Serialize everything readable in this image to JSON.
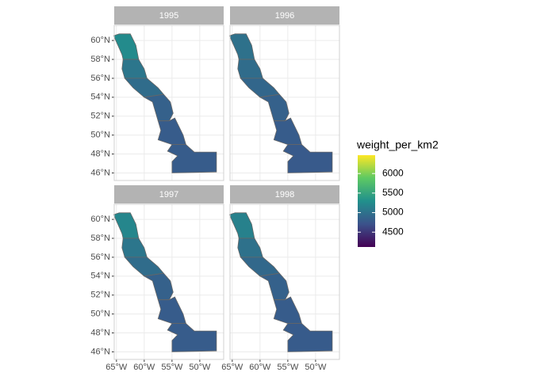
{
  "chart_data": {
    "type": "choropleth",
    "facets": [
      {
        "name": "1995",
        "values": [
          5250,
          5050,
          4950,
          4850,
          4800,
          4800
        ]
      },
      {
        "name": "1996",
        "values": [
          5000,
          4950,
          4900,
          4850,
          4800,
          4780
        ]
      },
      {
        "name": "1997",
        "values": [
          5200,
          5050,
          4950,
          4850,
          4800,
          4800
        ]
      },
      {
        "name": "1998",
        "values": [
          5150,
          5000,
          4920,
          4850,
          4800,
          4790
        ]
      }
    ],
    "xlim": [
      -65.4,
      -45.7
    ],
    "ylim": [
      45.2,
      61.6
    ],
    "xticks": [
      {
        "value": -65,
        "label": "65°W"
      },
      {
        "value": -60,
        "label": "60°W"
      },
      {
        "value": -55,
        "label": "55°W"
      },
      {
        "value": -50,
        "label": "50°W"
      }
    ],
    "yticks": [
      {
        "value": 46,
        "label": "46°N"
      },
      {
        "value": 48,
        "label": "48°N"
      },
      {
        "value": 50,
        "label": "50°N"
      },
      {
        "value": 52,
        "label": "52°N"
      },
      {
        "value": 54,
        "label": "54°N"
      },
      {
        "value": 56,
        "label": "56°N"
      },
      {
        "value": 58,
        "label": "58°N"
      },
      {
        "value": 60,
        "label": "60°N"
      }
    ],
    "legend": {
      "title": "weight_per_km2",
      "lim": [
        4120,
        6470
      ],
      "ticks": [
        4500,
        5000,
        5500,
        6000
      ]
    },
    "grid": true
  }
}
